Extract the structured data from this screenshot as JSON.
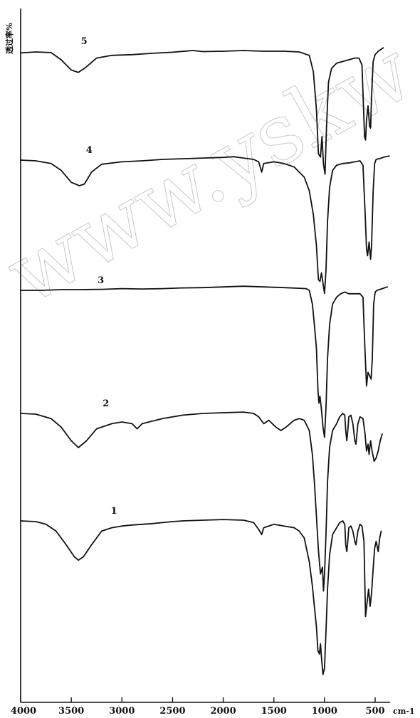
{
  "chart_data": {
    "type": "line",
    "title": "",
    "xlabel": "",
    "ylabel": "透过率%",
    "x_unit": "cm-1",
    "xlim": [
      4000,
      350
    ],
    "x_ticks": [
      4000,
      3500,
      3000,
      2500,
      2000,
      1500,
      1000,
      500
    ],
    "grid": false,
    "legend": "none",
    "watermark": "www.yskw",
    "series": [
      {
        "name": "5",
        "label_x": 3405,
        "points": [
          [
            4000,
            0.05
          ],
          [
            3850,
            0.02
          ],
          [
            3700,
            0.04
          ],
          [
            3600,
            0.25
          ],
          [
            3500,
            0.55
          ],
          [
            3430,
            0.62
          ],
          [
            3360,
            0.48
          ],
          [
            3250,
            0.2
          ],
          [
            3100,
            0.12
          ],
          [
            2900,
            0.1
          ],
          [
            2700,
            0.06
          ],
          [
            2500,
            0.03
          ],
          [
            2300,
            -0.02
          ],
          [
            2200,
            0.01
          ],
          [
            2000,
            0.0
          ],
          [
            1800,
            -0.02
          ],
          [
            1600,
            0.0
          ],
          [
            1400,
            0.0
          ],
          [
            1250,
            0.02
          ],
          [
            1150,
            0.12
          ],
          [
            1110,
            0.6
          ],
          [
            1080,
            1.7
          ],
          [
            1060,
            3.0
          ],
          [
            1040,
            3.1
          ],
          [
            1025,
            2.5
          ],
          [
            1010,
            3.3
          ],
          [
            995,
            3.6
          ],
          [
            980,
            2.2
          ],
          [
            960,
            0.9
          ],
          [
            930,
            0.5
          ],
          [
            880,
            0.35
          ],
          [
            820,
            0.3
          ],
          [
            760,
            0.25
          ],
          [
            700,
            0.2
          ],
          [
            660,
            0.2
          ],
          [
            630,
            0.4
          ],
          [
            605,
            2.5
          ],
          [
            595,
            2.6
          ],
          [
            585,
            2.0
          ],
          [
            570,
            1.6
          ],
          [
            555,
            2.2
          ],
          [
            545,
            2.25
          ],
          [
            535,
            1.3
          ],
          [
            520,
            0.3
          ],
          [
            500,
            0.1
          ],
          [
            470,
            0.0
          ],
          [
            420,
            -0.1
          ]
        ]
      },
      {
        "name": "4",
        "label_x": 3355,
        "points": [
          [
            4000,
            0.0
          ],
          [
            3850,
            0.02
          ],
          [
            3700,
            0.1
          ],
          [
            3600,
            0.3
          ],
          [
            3500,
            0.65
          ],
          [
            3420,
            0.75
          ],
          [
            3370,
            0.7
          ],
          [
            3300,
            0.35
          ],
          [
            3200,
            0.12
          ],
          [
            3000,
            0.05
          ],
          [
            2800,
            0.02
          ],
          [
            2600,
            -0.02
          ],
          [
            2400,
            -0.04
          ],
          [
            2200,
            -0.06
          ],
          [
            2000,
            -0.08
          ],
          [
            1900,
            -0.1
          ],
          [
            1800,
            -0.06
          ],
          [
            1700,
            -0.02
          ],
          [
            1650,
            0.05
          ],
          [
            1620,
            0.35
          ],
          [
            1600,
            0.1
          ],
          [
            1500,
            0.05
          ],
          [
            1400,
            0.1
          ],
          [
            1300,
            0.2
          ],
          [
            1200,
            0.5
          ],
          [
            1150,
            0.9
          ],
          [
            1110,
            1.6
          ],
          [
            1080,
            2.5
          ],
          [
            1060,
            3.5
          ],
          [
            1045,
            3.55
          ],
          [
            1030,
            3.3
          ],
          [
            1015,
            3.6
          ],
          [
            1000,
            3.9
          ],
          [
            985,
            3.2
          ],
          [
            970,
            1.8
          ],
          [
            950,
            0.8
          ],
          [
            920,
            0.3
          ],
          [
            880,
            0.15
          ],
          [
            820,
            0.1
          ],
          [
            750,
            0.08
          ],
          [
            700,
            0.05
          ],
          [
            650,
            0.02
          ],
          [
            620,
            0.15
          ],
          [
            600,
            1.5
          ],
          [
            585,
            2.6
          ],
          [
            575,
            2.8
          ],
          [
            560,
            2.4
          ],
          [
            545,
            2.9
          ],
          [
            535,
            2.5
          ],
          [
            520,
            0.9
          ],
          [
            505,
            0.1
          ],
          [
            490,
            -0.02
          ],
          [
            450,
            -0.05
          ],
          [
            400,
            -0.1
          ],
          [
            360,
            -0.12
          ]
        ]
      },
      {
        "name": "3",
        "label_x": 3240,
        "points": [
          [
            4000,
            0.0
          ],
          [
            3800,
            0.0
          ],
          [
            3600,
            -0.02
          ],
          [
            3400,
            -0.02
          ],
          [
            3200,
            -0.03
          ],
          [
            3000,
            -0.05
          ],
          [
            2800,
            -0.04
          ],
          [
            2600,
            -0.05
          ],
          [
            2400,
            -0.07
          ],
          [
            2200,
            -0.08
          ],
          [
            2000,
            -0.1
          ],
          [
            1800,
            -0.12
          ],
          [
            1600,
            -0.1
          ],
          [
            1400,
            -0.08
          ],
          [
            1250,
            -0.06
          ],
          [
            1180,
            -0.05
          ],
          [
            1150,
            0.0
          ],
          [
            1120,
            0.4
          ],
          [
            1100,
            1.0
          ],
          [
            1080,
            1.7
          ],
          [
            1065,
            2.9
          ],
          [
            1055,
            3.3
          ],
          [
            1045,
            3.1
          ],
          [
            1030,
            3.5
          ],
          [
            1015,
            4.0
          ],
          [
            1000,
            4.3
          ],
          [
            985,
            3.4
          ],
          [
            970,
            2.0
          ],
          [
            950,
            1.0
          ],
          [
            920,
            0.4
          ],
          [
            880,
            0.2
          ],
          [
            840,
            0.1
          ],
          [
            800,
            0.05
          ],
          [
            760,
            0.1
          ],
          [
            700,
            0.1
          ],
          [
            650,
            0.1
          ],
          [
            620,
            0.2
          ],
          [
            600,
            1.8
          ],
          [
            585,
            2.8
          ],
          [
            570,
            2.4
          ],
          [
            555,
            2.5
          ],
          [
            540,
            2.6
          ],
          [
            528,
            2.0
          ],
          [
            515,
            0.4
          ],
          [
            500,
            0.05
          ],
          [
            480,
            0.0
          ],
          [
            430,
            -0.05
          ],
          [
            380,
            -0.1
          ]
        ]
      },
      {
        "name": "2",
        "label_x": 3190,
        "points": [
          [
            4000,
            0.0
          ],
          [
            3850,
            0.02
          ],
          [
            3700,
            0.15
          ],
          [
            3600,
            0.4
          ],
          [
            3500,
            0.8
          ],
          [
            3430,
            1.0
          ],
          [
            3350,
            0.8
          ],
          [
            3250,
            0.45
          ],
          [
            3100,
            0.3
          ],
          [
            3000,
            0.25
          ],
          [
            2900,
            0.3
          ],
          [
            2850,
            0.45
          ],
          [
            2800,
            0.3
          ],
          [
            2600,
            0.15
          ],
          [
            2400,
            0.05
          ],
          [
            2200,
            0.0
          ],
          [
            2000,
            -0.02
          ],
          [
            1800,
            -0.04
          ],
          [
            1700,
            0.0
          ],
          [
            1650,
            0.1
          ],
          [
            1600,
            0.3
          ],
          [
            1550,
            0.2
          ],
          [
            1480,
            0.4
          ],
          [
            1430,
            0.5
          ],
          [
            1380,
            0.4
          ],
          [
            1300,
            0.2
          ],
          [
            1250,
            0.15
          ],
          [
            1200,
            0.2
          ],
          [
            1150,
            0.5
          ],
          [
            1120,
            1.2
          ],
          [
            1100,
            2.0
          ],
          [
            1080,
            3.0
          ],
          [
            1060,
            4.0
          ],
          [
            1040,
            4.7
          ],
          [
            1020,
            4.5
          ],
          [
            1010,
            5.2
          ],
          [
            1000,
            4.7
          ],
          [
            985,
            3.5
          ],
          [
            970,
            2.0
          ],
          [
            950,
            1.0
          ],
          [
            920,
            0.5
          ],
          [
            880,
            0.3
          ],
          [
            850,
            0.1
          ],
          [
            820,
            0.0
          ],
          [
            800,
            0.05
          ],
          [
            790,
            0.5
          ],
          [
            780,
            0.8
          ],
          [
            770,
            0.5
          ],
          [
            760,
            0.1
          ],
          [
            740,
            0.05
          ],
          [
            720,
            0.3
          ],
          [
            700,
            0.8
          ],
          [
            690,
            0.9
          ],
          [
            670,
            0.3
          ],
          [
            650,
            0.1
          ],
          [
            620,
            0.15
          ],
          [
            600,
            0.6
          ],
          [
            585,
            1.1
          ],
          [
            570,
            0.9
          ],
          [
            560,
            1.2
          ],
          [
            545,
            0.8
          ],
          [
            530,
            1.1
          ],
          [
            510,
            1.4
          ],
          [
            490,
            1.3
          ],
          [
            470,
            1.1
          ],
          [
            450,
            0.8
          ],
          [
            430,
            0.6
          ]
        ]
      },
      {
        "name": "1",
        "label_x": 3110,
        "points": [
          [
            4000,
            0.0
          ],
          [
            3850,
            0.02
          ],
          [
            3750,
            0.1
          ],
          [
            3650,
            0.3
          ],
          [
            3550,
            0.7
          ],
          [
            3470,
            1.05
          ],
          [
            3430,
            1.15
          ],
          [
            3380,
            1.05
          ],
          [
            3300,
            0.7
          ],
          [
            3200,
            0.3
          ],
          [
            3100,
            0.2
          ],
          [
            3000,
            0.15
          ],
          [
            2900,
            0.12
          ],
          [
            2800,
            0.1
          ],
          [
            2700,
            0.08
          ],
          [
            2600,
            0.05
          ],
          [
            2500,
            0.02
          ],
          [
            2400,
            0.0
          ],
          [
            2200,
            -0.02
          ],
          [
            2000,
            -0.04
          ],
          [
            1800,
            -0.02
          ],
          [
            1700,
            0.05
          ],
          [
            1650,
            0.25
          ],
          [
            1620,
            0.4
          ],
          [
            1600,
            0.2
          ],
          [
            1500,
            0.1
          ],
          [
            1400,
            0.15
          ],
          [
            1300,
            0.2
          ],
          [
            1250,
            0.3
          ],
          [
            1200,
            0.5
          ],
          [
            1150,
            1.2
          ],
          [
            1120,
            1.9
          ],
          [
            1100,
            2.5
          ],
          [
            1080,
            3.1
          ],
          [
            1065,
            3.8
          ],
          [
            1050,
            3.9
          ],
          [
            1040,
            3.6
          ],
          [
            1030,
            4.0
          ],
          [
            1015,
            4.5
          ],
          [
            1000,
            4.3
          ],
          [
            985,
            3.2
          ],
          [
            970,
            2.0
          ],
          [
            950,
            1.0
          ],
          [
            920,
            0.4
          ],
          [
            880,
            0.2
          ],
          [
            850,
            0.05
          ],
          [
            820,
            0.0
          ],
          [
            800,
            0.1
          ],
          [
            790,
            0.7
          ],
          [
            780,
            0.9
          ],
          [
            770,
            0.6
          ],
          [
            760,
            0.2
          ],
          [
            740,
            0.15
          ],
          [
            720,
            0.3
          ],
          [
            700,
            0.6
          ],
          [
            690,
            0.7
          ],
          [
            670,
            0.3
          ],
          [
            650,
            0.1
          ],
          [
            630,
            0.15
          ],
          [
            610,
            0.6
          ],
          [
            595,
            2.8
          ],
          [
            580,
            2.4
          ],
          [
            565,
            2.0
          ],
          [
            550,
            2.5
          ],
          [
            535,
            2.1
          ],
          [
            520,
            1.4
          ],
          [
            505,
            0.8
          ],
          [
            490,
            0.6
          ],
          [
            470,
            0.9
          ],
          [
            455,
            0.5
          ],
          [
            440,
            0.3
          ]
        ]
      }
    ]
  }
}
